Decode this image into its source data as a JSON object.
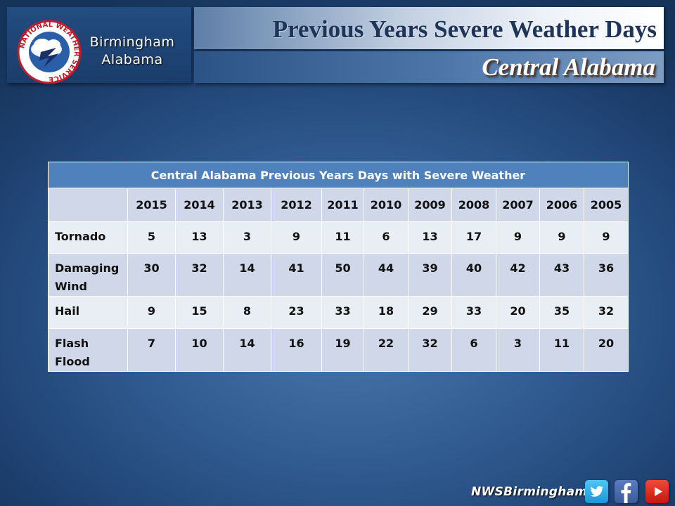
{
  "header": {
    "office_line1": "Birmingham",
    "office_line2": "Alabama",
    "title": "Previous Years Severe Weather Days",
    "subtitle": "Central Alabama",
    "logo_ring_text": "NATIONAL WEATHER SERVICE"
  },
  "table": {
    "caption": "Central Alabama Previous Years Days with Severe Weather",
    "years": [
      "2015",
      "2014",
      "2013",
      "2012",
      "2011",
      "2010",
      "2009",
      "2008",
      "2007",
      "2006",
      "2005"
    ],
    "rows": [
      {
        "label_line1": "Tornado",
        "label_line2": "",
        "values": [
          "5",
          "13",
          "3",
          "9",
          "11",
          "6",
          "13",
          "17",
          "9",
          "9",
          "9"
        ]
      },
      {
        "label_line1": "Damaging",
        "label_line2": "Wind",
        "values": [
          "30",
          "32",
          "14",
          "41",
          "50",
          "44",
          "39",
          "40",
          "42",
          "43",
          "36"
        ]
      },
      {
        "label_line1": "Hail",
        "label_line2": "",
        "values": [
          "9",
          "15",
          "8",
          "23",
          "33",
          "18",
          "29",
          "33",
          "20",
          "35",
          "32"
        ]
      },
      {
        "label_line1": "Flash",
        "label_line2": "Flood",
        "values": [
          "7",
          "10",
          "14",
          "16",
          "19",
          "22",
          "32",
          "6",
          "3",
          "11",
          "20"
        ]
      }
    ]
  },
  "footer": {
    "handle": "NWSBirmingham",
    "icons": [
      "twitter-icon",
      "facebook-icon",
      "youtube-icon"
    ]
  },
  "colors": {
    "background": "#2f5a90",
    "table_caption": "#4f81bd",
    "row_light": "#e9edf4",
    "row_dark": "#cfd7e8",
    "title_text": "#1e3458"
  }
}
